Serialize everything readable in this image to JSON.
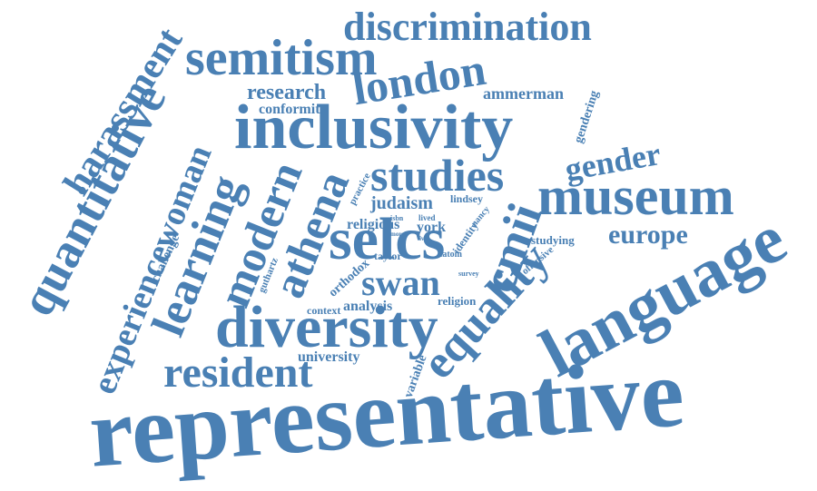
{
  "cloud": {
    "color": "#4a80b4",
    "words": {
      "representative": "representative",
      "language": "language",
      "inclusivity": "inclusivity",
      "diversity": "diversity",
      "selcs": "selcs",
      "museum": "museum",
      "semitism": "semitism",
      "quantitative": "quantitative",
      "learning": "learning",
      "modern": "modern",
      "athena": "athena",
      "equality": "equality",
      "london": "london",
      "studies": "studies",
      "discrimination": "discrimination",
      "harassment": "harassment",
      "resident": "resident",
      "experiencewoman": "experiencewoman",
      "swan": "swan",
      "cmii": "cmii",
      "gender": "gender",
      "europe": "europe",
      "research": "research",
      "ammerman": "ammerman",
      "conformity": "conformity",
      "gendering": "gendering",
      "judaism": "judaism",
      "york": "york",
      "religious": "religious",
      "taylor": "taylor",
      "orthodox": "orthodox",
      "analysis": "analysis",
      "context": "context",
      "religion": "religion",
      "university": "university",
      "variable": "variable",
      "studying": "studying",
      "offensive": "offensive",
      "challenge": "challenge",
      "guthartz": "guthartz",
      "lindsey": "lindsey",
      "nancy": "nancy",
      "identity": "identity",
      "practice": "practice",
      "isbn": "isbn",
      "lived": "lived",
      "more": "more",
      "live": "live",
      "tatom": "tatom",
      "survey": "survey"
    }
  }
}
